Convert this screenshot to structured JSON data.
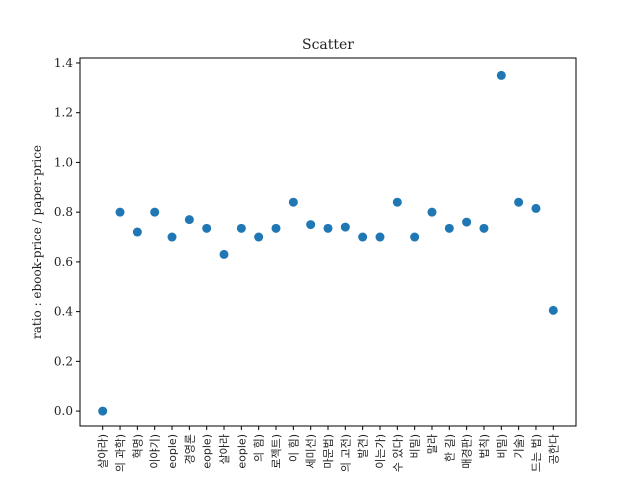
{
  "chart_data": {
    "type": "scatter",
    "title": "Scatter",
    "xlabel": "",
    "ylabel": "ratio : ebook-price / paper-price",
    "ylim": [
      -0.06,
      1.42
    ],
    "yticks": [
      "0.0",
      "0.2",
      "0.4",
      "0.6",
      "0.8",
      "1.0",
      "1.2",
      "1.4"
    ],
    "grid": false,
    "marker_color": "#1f77b4",
    "categories": [
      "살아라)",
      "의 과학)",
      "혁명)",
      "이야기)",
      "eople)",
      "경영론",
      "eople)",
      "살아라",
      "eople)",
      "의 힘)",
      "로젝트)",
      "이 힘)",
      "세미선)",
      "마문법)",
      "의 고전)",
      "발견)",
      "이는가)",
      "수 있다)",
      "비밀)",
      "말라",
      "한 길)",
      "매경판)",
      "법칙)",
      "비밀)",
      "기술)",
      "드는 법)",
      "공한다"
    ],
    "values": [
      0.0,
      0.8,
      0.72,
      0.8,
      0.7,
      0.77,
      0.735,
      0.63,
      0.735,
      0.7,
      0.735,
      0.84,
      0.75,
      0.735,
      0.74,
      0.7,
      0.7,
      0.84,
      0.7,
      0.8,
      0.735,
      0.76,
      0.735,
      1.35,
      0.84,
      0.815,
      0.405
    ]
  }
}
